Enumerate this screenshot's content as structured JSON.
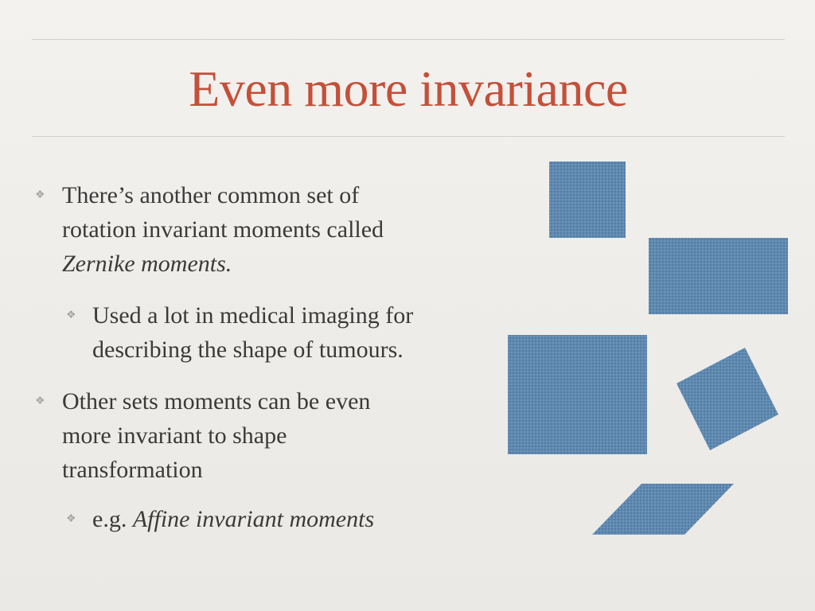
{
  "slide": {
    "title": "Even more invariance",
    "bullets": [
      {
        "level": 1,
        "line1": "There’s another common set of",
        "line2": "rotation invariant moments called",
        "line3_italic": "Zernike moments."
      },
      {
        "level": 2,
        "line1": "Used a lot in medical imaging for",
        "line2": "describing the shape of tumours."
      },
      {
        "level": 1,
        "line1": "Other sets moments can be even",
        "line2": "more invariant to shape",
        "line3": "transformation"
      },
      {
        "level": 2,
        "prefix": "e.g. ",
        "italic": "Affine invariant moments"
      }
    ],
    "bullet_marker": "❖",
    "shape_color": "#5f8bb3"
  }
}
